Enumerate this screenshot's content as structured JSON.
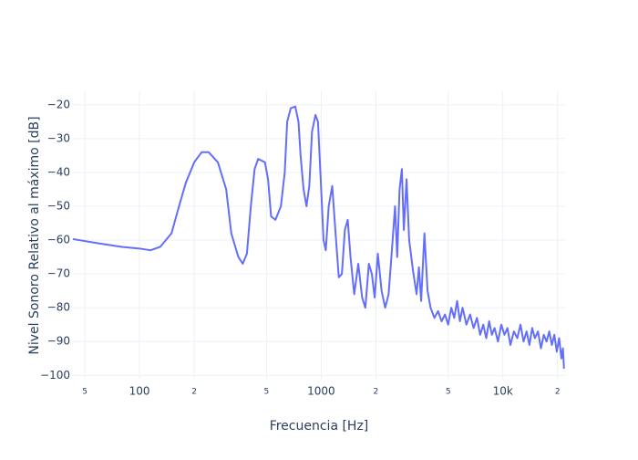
{
  "chart_data": {
    "type": "line",
    "x_label": "Frecuencia [Hz]",
    "y_label": "Nivel Sonoro Relativo al máximo [dB]",
    "x_scale": "log",
    "grid": true,
    "xlim": [
      43,
      22000
    ],
    "ylim": [
      -101,
      -16
    ],
    "xticks": [
      {
        "value": 50,
        "label": "5"
      },
      100,
      {
        "value": 200,
        "label": "2"
      },
      {
        "value": 500,
        "label": "5"
      },
      1000,
      {
        "value": 2000,
        "label": "2"
      },
      {
        "value": 5000,
        "label": "5"
      },
      {
        "value": 10000,
        "label": "10k"
      },
      {
        "value": 20000,
        "label": "2"
      }
    ],
    "yticks": [
      {
        "value": -20,
        "label": "−20"
      },
      {
        "value": -30,
        "label": "−30"
      },
      {
        "value": -40,
        "label": "−40"
      },
      {
        "value": -50,
        "label": "−50"
      },
      {
        "value": -60,
        "label": "−60"
      },
      {
        "value": -70,
        "label": "−70"
      },
      {
        "value": -80,
        "label": "−80"
      },
      {
        "value": -90,
        "label": "−90"
      },
      {
        "value": -100,
        "label": "−100"
      }
    ],
    "series": [
      {
        "color": "#636efa",
        "x": [
          43,
          60,
          80,
          100,
          115,
          130,
          150,
          165,
          180,
          200,
          220,
          240,
          270,
          300,
          320,
          350,
          370,
          390,
          410,
          430,
          450,
          490,
          510,
          530,
          560,
          600,
          630,
          650,
          680,
          720,
          750,
          770,
          800,
          830,
          860,
          890,
          930,
          960,
          1000,
          1030,
          1060,
          1100,
          1150,
          1200,
          1250,
          1300,
          1350,
          1400,
          1450,
          1520,
          1600,
          1680,
          1750,
          1830,
          1900,
          1970,
          2050,
          2150,
          2250,
          2350,
          2450,
          2550,
          2620,
          2700,
          2780,
          2850,
          2950,
          3050,
          3200,
          3350,
          3450,
          3550,
          3700,
          3850,
          4000,
          4200,
          4400,
          4600,
          4800,
          5000,
          5200,
          5400,
          5600,
          5800,
          6000,
          6300,
          6600,
          6900,
          7200,
          7500,
          7800,
          8100,
          8400,
          8700,
          9000,
          9400,
          9800,
          10200,
          10600,
          11000,
          11500,
          12000,
          12500,
          13000,
          13500,
          14000,
          14500,
          15000,
          15600,
          16200,
          16800,
          17400,
          18000,
          18600,
          19200,
          19800,
          20400,
          21000,
          21400,
          21700
        ],
        "values": [
          -59.7,
          -61,
          -62,
          -62.5,
          -63,
          -62,
          -58,
          -50,
          -43,
          -37,
          -34,
          -34,
          -37,
          -45,
          -58,
          -65,
          -67,
          -64,
          -50,
          -39,
          -36,
          -37,
          -42,
          -53,
          -54,
          -50,
          -40,
          -25,
          -21,
          -20.5,
          -25,
          -35,
          -45,
          -50,
          -44,
          -28,
          -23,
          -25,
          -45,
          -60,
          -63,
          -50,
          -44,
          -58,
          -71,
          -70,
          -57,
          -54,
          -65,
          -76,
          -67,
          -77,
          -80,
          -67,
          -70,
          -77,
          -64,
          -75,
          -80,
          -76,
          -63,
          -50,
          -65,
          -45,
          -39,
          -57,
          -42,
          -60,
          -69,
          -76,
          -68,
          -78,
          -58,
          -75,
          -80,
          -83,
          -81,
          -84,
          -82,
          -85,
          -80,
          -83,
          -78,
          -84,
          -80,
          -85,
          -82,
          -86,
          -83,
          -88,
          -85,
          -89,
          -84,
          -88,
          -86,
          -90,
          -85,
          -88,
          -86,
          -91,
          -87,
          -89,
          -85,
          -90,
          -87,
          -91,
          -86,
          -89,
          -87,
          -92,
          -88,
          -90,
          -87,
          -91,
          -88,
          -93,
          -89,
          -95,
          -92,
          -98
        ]
      }
    ]
  }
}
